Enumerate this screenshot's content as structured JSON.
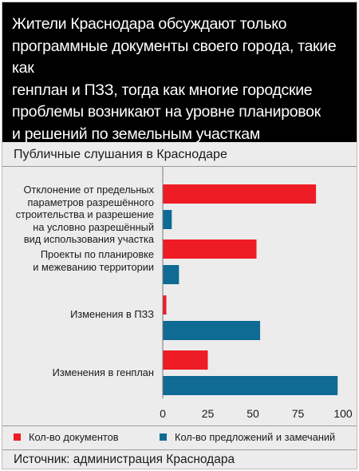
{
  "header": {
    "title_lines": [
      "Жители Краснодара обсуждают только",
      "программные документы своего города, такие как",
      "генплан и ПЗЗ, тогда как многие городские",
      "проблемы возникают на уровне планировок",
      "и решений по земельным участкам"
    ]
  },
  "chart_data": {
    "type": "bar",
    "orientation": "horizontal",
    "title": "Публичные слушания в Краснодаре",
    "categories": [
      [
        "Отклонение от предельных",
        "параметров разрешённого",
        "строительства и разрешение",
        "на условно разрешённый",
        "вид использования  участка"
      ],
      [
        "Проекты по планировке",
        "и межеванию территории"
      ],
      [
        "Изменения в ПЗЗ"
      ],
      [
        "Изменения в генплан"
      ]
    ],
    "series": [
      {
        "name": "Кол-во документов",
        "color": "#ee1c25",
        "values": [
          85,
          52,
          2,
          25
        ]
      },
      {
        "name": "Кол-во предложений и замечаний",
        "color": "#0f6a94",
        "values": [
          5,
          9,
          54,
          97
        ]
      }
    ],
    "xlim": [
      0,
      100
    ],
    "xticks": [
      "0",
      "25",
      "50",
      "75",
      "100"
    ],
    "grid": false,
    "legend_position": "bottom"
  },
  "source": "Источник: администрация Краснодара"
}
